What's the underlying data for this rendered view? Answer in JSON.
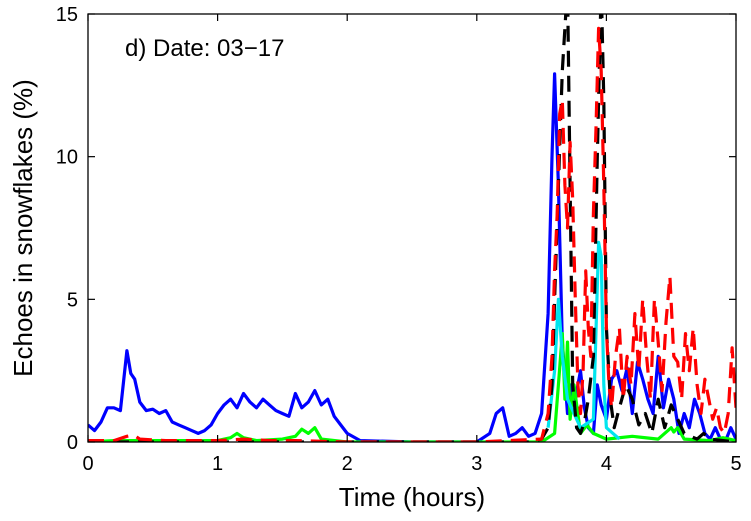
{
  "chart_data": {
    "type": "line",
    "annotation": "d) Date: 03−17",
    "xlabel": "Time (hours)",
    "ylabel": "Echoes in snowflakes (%)",
    "xlim": [
      0,
      5
    ],
    "ylim": [
      0,
      15
    ],
    "xticks": [
      0,
      1,
      2,
      3,
      4,
      5
    ],
    "xtick_labels": [
      "0",
      "1",
      "2",
      "3",
      "4",
      "5"
    ],
    "yticks": [
      0,
      5,
      10,
      15
    ],
    "ytick_labels": [
      "0",
      "5",
      "10",
      "15"
    ],
    "grid": false,
    "series": [
      {
        "color": "#0000ff",
        "dash": "solid",
        "x": [
          0,
          0.05,
          0.1,
          0.15,
          0.2,
          0.25,
          0.3,
          0.33,
          0.36,
          0.4,
          0.45,
          0.5,
          0.55,
          0.6,
          0.65,
          0.7,
          0.75,
          0.8,
          0.85,
          0.9,
          0.95,
          1.0,
          1.05,
          1.1,
          1.15,
          1.2,
          1.25,
          1.3,
          1.35,
          1.4,
          1.45,
          1.5,
          1.55,
          1.6,
          1.65,
          1.7,
          1.75,
          1.8,
          1.85,
          1.9,
          1.95,
          2.0,
          2.1,
          2.5,
          3.0,
          3.1,
          3.15,
          3.2,
          3.25,
          3.3,
          3.35,
          3.4,
          3.45,
          3.5,
          3.55,
          3.58,
          3.6,
          3.63,
          3.66,
          3.7,
          3.73,
          3.76,
          3.8,
          3.83,
          3.86,
          3.9,
          3.93,
          3.96,
          4.0,
          4.04,
          4.08,
          4.12,
          4.16,
          4.2,
          4.24,
          4.28,
          4.32,
          4.36,
          4.4,
          4.44,
          4.48,
          4.52,
          4.56,
          4.6,
          4.64,
          4.68,
          4.72,
          4.76,
          4.8,
          4.84,
          4.88,
          4.92,
          4.96,
          5.0
        ],
        "y": [
          0.6,
          0.4,
          0.7,
          1.2,
          1.2,
          1.1,
          3.2,
          2.4,
          2.2,
          1.4,
          1.1,
          1.15,
          1.0,
          1.1,
          0.7,
          0.6,
          0.5,
          0.4,
          0.3,
          0.4,
          0.6,
          1.0,
          1.3,
          1.5,
          1.2,
          1.7,
          1.4,
          1.2,
          1.5,
          1.3,
          1.1,
          1.0,
          0.9,
          1.7,
          1.2,
          1.4,
          1.8,
          1.3,
          1.5,
          0.9,
          0.6,
          0.3,
          0.05,
          0.0,
          0.0,
          0.3,
          1.0,
          1.2,
          0.2,
          0.3,
          0.5,
          0.2,
          0.3,
          1.0,
          4.5,
          10.0,
          12.9,
          9.0,
          3.5,
          1.0,
          2.0,
          1.5,
          2.5,
          1.2,
          0.5,
          0.3,
          2.0,
          1.3,
          0.8,
          2.2,
          2.5,
          1.8,
          2.6,
          1.0,
          2.8,
          2.2,
          1.5,
          1.0,
          3.0,
          1.2,
          2.2,
          1.5,
          0.3,
          1.0,
          0.5,
          1.5,
          1.0,
          0.3,
          0.1,
          0.5,
          0.1,
          0.05,
          0.5,
          0.1
        ]
      },
      {
        "color": "#00ff00",
        "dash": "solid",
        "x": [
          0,
          0.2,
          0.5,
          1.0,
          1.1,
          1.15,
          1.2,
          1.3,
          1.5,
          1.6,
          1.65,
          1.7,
          1.75,
          1.8,
          2.0,
          2.5,
          3.0,
          3.5,
          3.6,
          3.63,
          3.66,
          3.68,
          3.7,
          3.72,
          3.75,
          3.8,
          3.85,
          3.9,
          4.0,
          4.2,
          4.4,
          4.5,
          4.52,
          4.55,
          4.6,
          4.8,
          4.9,
          5.0
        ],
        "y": [
          0,
          0.05,
          0.05,
          0.05,
          0.15,
          0.3,
          0.15,
          0.05,
          0.1,
          0.2,
          0.45,
          0.3,
          0.5,
          0.1,
          0.0,
          0.0,
          0.0,
          0.0,
          0.3,
          2.0,
          3.8,
          1.5,
          3.5,
          0.8,
          2.0,
          0.3,
          0.6,
          0.3,
          0.1,
          0.2,
          0.1,
          0.5,
          0.35,
          0.5,
          0.1,
          0.05,
          0.15,
          0.05
        ]
      },
      {
        "color": "#00e5ee",
        "dash": "solid",
        "x": [
          3.55,
          3.6,
          3.63,
          3.66,
          3.7,
          3.75,
          3.8,
          3.9,
          3.94,
          3.96,
          3.98,
          4.0,
          4.1
        ],
        "y": [
          0.5,
          2.5,
          5.0,
          3.0,
          1.5,
          1.0,
          0.5,
          0.8,
          7.0,
          6.5,
          2.0,
          0.5,
          0.1
        ]
      },
      {
        "color": "#000000",
        "dash": "dash",
        "x": [
          0,
          0.5,
          1.0,
          1.5,
          2.0,
          2.5,
          3.0,
          3.4,
          3.5,
          3.55,
          3.58,
          3.6,
          3.63,
          3.66,
          3.7,
          3.72,
          3.74,
          3.77,
          3.8,
          3.83,
          3.86,
          3.9,
          3.93,
          3.96,
          3.98,
          4.0,
          4.03,
          4.06,
          4.1,
          4.15,
          4.2,
          4.25,
          4.3,
          4.35,
          4.4,
          4.45,
          4.5,
          4.55,
          4.6,
          4.65,
          4.7,
          4.75,
          4.8,
          4.9,
          5.0
        ],
        "y": [
          0,
          0,
          0,
          0,
          0,
          0,
          0,
          0,
          0.1,
          0.5,
          2.0,
          5.0,
          9.0,
          13.0,
          16.0,
          9.0,
          2.0,
          0.5,
          0.3,
          0.7,
          1.5,
          3.0,
          10.0,
          16.0,
          12.0,
          4.0,
          1.5,
          0.5,
          1.2,
          2.0,
          1.5,
          0.6,
          1.0,
          0.3,
          1.5,
          0.5,
          1.3,
          0.8,
          0.3,
          0.2,
          0.1,
          0.3,
          0.1,
          0.05,
          0.0
        ]
      },
      {
        "color": "#ff0000",
        "dash": "dash",
        "x": [
          0,
          0.2,
          0.3,
          0.35,
          0.4,
          0.6,
          1.0,
          1.2,
          1.4,
          1.6,
          2.0,
          2.5,
          3.0,
          3.5,
          3.55,
          3.58,
          3.6,
          3.62,
          3.64,
          3.66,
          3.68,
          3.7,
          3.72,
          3.74,
          3.76,
          3.78,
          3.8,
          3.82,
          3.84,
          3.86,
          3.88,
          3.9,
          3.92,
          3.94,
          3.96,
          3.98,
          4.0,
          4.02,
          4.04,
          4.07,
          4.1,
          4.13,
          4.16,
          4.19,
          4.22,
          4.25,
          4.28,
          4.31,
          4.34,
          4.37,
          4.4,
          4.43,
          4.46,
          4.49,
          4.52,
          4.55,
          4.58,
          4.61,
          4.64,
          4.67,
          4.7,
          4.73,
          4.76,
          4.79,
          4.82,
          4.85,
          4.88,
          4.91,
          4.94,
          4.97,
          5.0
        ],
        "y": [
          0.05,
          0.05,
          0.2,
          0.25,
          0.1,
          0.05,
          0.05,
          0.1,
          0.05,
          0.05,
          0.0,
          0.0,
          0.0,
          0.1,
          1.0,
          3.0,
          6.0,
          8.0,
          11.5,
          12.0,
          9.0,
          7.5,
          10.5,
          8.5,
          5.0,
          2.0,
          1.0,
          2.5,
          6.0,
          4.0,
          3.0,
          8.0,
          11.0,
          14.5,
          13.0,
          9.0,
          4.0,
          2.0,
          1.2,
          3.0,
          4.0,
          1.5,
          3.0,
          2.0,
          4.5,
          2.5,
          5.0,
          3.0,
          1.5,
          5.0,
          3.5,
          1.8,
          4.2,
          5.8,
          3.0,
          2.8,
          1.5,
          3.8,
          2.5,
          4.0,
          2.0,
          1.0,
          2.2,
          1.5,
          0.8,
          1.2,
          0.5,
          0.3,
          1.0,
          3.3,
          1.2
        ]
      }
    ]
  }
}
